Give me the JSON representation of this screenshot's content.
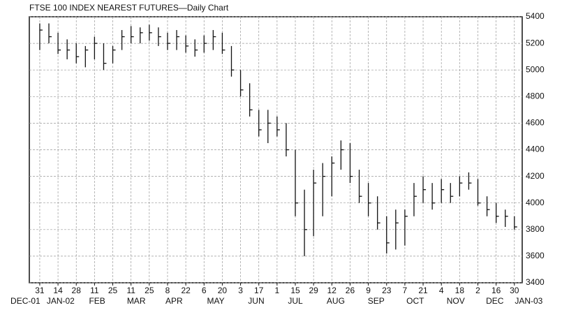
{
  "chart_data": {
    "type": "ohlc",
    "title": "FTSE 100 INDEX NEAREST FUTURES—Daily Chart",
    "color": "#111111",
    "grid": true,
    "x": [
      "2001-12-31",
      "2002-01-07",
      "2002-01-14",
      "2002-01-21",
      "2002-01-28",
      "2002-02-04",
      "2002-02-11",
      "2002-02-18",
      "2002-02-25",
      "2002-03-04",
      "2002-03-11",
      "2002-03-18",
      "2002-03-25",
      "2002-04-01",
      "2002-04-08",
      "2002-04-15",
      "2002-04-22",
      "2002-04-29",
      "2002-05-06",
      "2002-05-13",
      "2002-05-20",
      "2002-05-27",
      "2002-06-03",
      "2002-06-10",
      "2002-06-17",
      "2002-06-24",
      "2002-07-01",
      "2002-07-08",
      "2002-07-15",
      "2002-07-22",
      "2002-07-29",
      "2002-08-05",
      "2002-08-12",
      "2002-08-19",
      "2002-08-26",
      "2002-09-02",
      "2002-09-09",
      "2002-09-16",
      "2002-09-23",
      "2002-09-30",
      "2002-10-07",
      "2002-10-14",
      "2002-10-21",
      "2002-10-28",
      "2002-11-04",
      "2002-11-11",
      "2002-11-18",
      "2002-11-25",
      "2002-12-02",
      "2002-12-09",
      "2002-12-16",
      "2002-12-23",
      "2002-12-30"
    ],
    "high": [
      5350,
      5350,
      5280,
      5230,
      5200,
      5180,
      5250,
      5200,
      5180,
      5300,
      5330,
      5320,
      5340,
      5320,
      5280,
      5300,
      5260,
      5230,
      5260,
      5300,
      5280,
      5180,
      5000,
      4900,
      4700,
      4700,
      4650,
      4600,
      4400,
      4100,
      4250,
      4300,
      4350,
      4470,
      4450,
      4250,
      4150,
      4050,
      3900,
      3950,
      3950,
      4150,
      4200,
      4150,
      4180,
      4150,
      4200,
      4230,
      4180,
      4050,
      4000,
      3950,
      3900
    ],
    "low": [
      5150,
      5200,
      5120,
      5080,
      5050,
      5020,
      5080,
      5000,
      5050,
      5150,
      5200,
      5200,
      5220,
      5180,
      5150,
      5150,
      5130,
      5100,
      5130,
      5150,
      5120,
      4950,
      4800,
      4650,
      4500,
      4450,
      4500,
      4350,
      3900,
      3600,
      3750,
      3900,
      4050,
      4250,
      4150,
      4000,
      3900,
      3800,
      3620,
      3650,
      3680,
      3900,
      4000,
      3950,
      4000,
      4000,
      4050,
      4100,
      3980,
      3900,
      3850,
      3820,
      3800
    ],
    "close": [
      5300,
      5250,
      5150,
      5150,
      5100,
      5150,
      5200,
      5050,
      5150,
      5250,
      5250,
      5280,
      5280,
      5250,
      5200,
      5250,
      5180,
      5150,
      5200,
      5250,
      5150,
      5000,
      4850,
      4700,
      4550,
      4600,
      4550,
      4400,
      4000,
      3800,
      4150,
      4200,
      4300,
      4400,
      4200,
      4050,
      4000,
      3850,
      3700,
      3850,
      3900,
      4050,
      4100,
      4000,
      4100,
      4050,
      4150,
      4150,
      4000,
      3950,
      3900,
      3900,
      3820
    ],
    "xlim": [
      "2001-12-23",
      "2003-01-05"
    ],
    "ylim": [
      3400,
      5400
    ],
    "yticks": [
      3400,
      3600,
      3800,
      4000,
      4200,
      4400,
      4600,
      4800,
      5000,
      5200,
      5400
    ],
    "xticks": [
      {
        "value": "2001-12-31",
        "label": "31"
      },
      {
        "value": "2002-01-14",
        "label": "14"
      },
      {
        "value": "2002-01-28",
        "label": "28"
      },
      {
        "value": "2002-02-11",
        "label": "11"
      },
      {
        "value": "2002-02-25",
        "label": "25"
      },
      {
        "value": "2002-03-11",
        "label": "11"
      },
      {
        "value": "2002-03-25",
        "label": "25"
      },
      {
        "value": "2002-04-08",
        "label": "8"
      },
      {
        "value": "2002-04-22",
        "label": "22"
      },
      {
        "value": "2002-05-06",
        "label": "6"
      },
      {
        "value": "2002-05-20",
        "label": "20"
      },
      {
        "value": "2002-06-03",
        "label": "3"
      },
      {
        "value": "2002-06-17",
        "label": "17"
      },
      {
        "value": "2002-07-01",
        "label": "1"
      },
      {
        "value": "2002-07-15",
        "label": "15"
      },
      {
        "value": "2002-07-29",
        "label": "29"
      },
      {
        "value": "2002-08-12",
        "label": "12"
      },
      {
        "value": "2002-08-26",
        "label": "26"
      },
      {
        "value": "2002-09-09",
        "label": "9"
      },
      {
        "value": "2002-09-23",
        "label": "23"
      },
      {
        "value": "2002-10-07",
        "label": "7"
      },
      {
        "value": "2002-10-21",
        "label": "21"
      },
      {
        "value": "2002-11-04",
        "label": "4"
      },
      {
        "value": "2002-11-18",
        "label": "18"
      },
      {
        "value": "2002-12-02",
        "label": "2"
      },
      {
        "value": "2002-12-16",
        "label": "16"
      },
      {
        "value": "2002-12-30",
        "label": "30"
      }
    ],
    "month_labels": [
      {
        "value": "2001-12-20",
        "label": "DEC-01"
      },
      {
        "value": "2002-01-16",
        "label": "JAN-02"
      },
      {
        "value": "2002-02-13",
        "label": "FEB"
      },
      {
        "value": "2002-03-15",
        "label": "MAR"
      },
      {
        "value": "2002-04-13",
        "label": "APR"
      },
      {
        "value": "2002-05-15",
        "label": "MAY"
      },
      {
        "value": "2002-06-15",
        "label": "JUN"
      },
      {
        "value": "2002-07-15",
        "label": "JUL"
      },
      {
        "value": "2002-08-15",
        "label": "AUG"
      },
      {
        "value": "2002-09-15",
        "label": "SEP"
      },
      {
        "value": "2002-10-15",
        "label": "OCT"
      },
      {
        "value": "2002-11-15",
        "label": "NOV"
      },
      {
        "value": "2002-12-15",
        "label": "DEC"
      },
      {
        "value": "2003-01-10",
        "label": "JAN-03"
      }
    ]
  }
}
